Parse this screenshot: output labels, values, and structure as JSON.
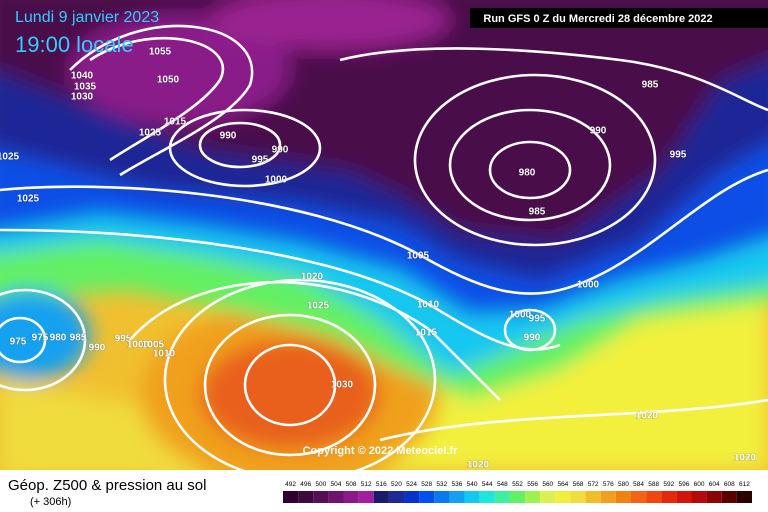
{
  "header": {
    "date": "Lundi 9 janvier 2023",
    "time": "19:00 locale",
    "run": "Run GFS 0 Z du Mercredi 28 décembre 2022"
  },
  "copyright": "Copyright © 2022 Meteociel.fr",
  "footer": {
    "title": "Géop. Z500 & pression au sol",
    "lead": "(+ 306h)"
  },
  "colorbar": {
    "values": [
      492,
      496,
      500,
      504,
      508,
      512,
      516,
      520,
      524,
      528,
      532,
      536,
      540,
      544,
      548,
      552,
      556,
      560,
      564,
      568,
      572,
      576,
      580,
      584,
      588,
      592,
      596,
      600,
      604,
      608,
      612
    ],
    "colors": [
      "#2d002d",
      "#3c0a3c",
      "#550f55",
      "#6e146e",
      "#8a1a8a",
      "#a01ea0",
      "#1a1a6e",
      "#1e2896",
      "#0a32c8",
      "#0050f0",
      "#0a78f0",
      "#14a0f0",
      "#14c8f0",
      "#1ee6dc",
      "#3cf0a0",
      "#64f064",
      "#a0f050",
      "#dcf050",
      "#f0f03c",
      "#f0dc3c",
      "#f0be28",
      "#f0a01e",
      "#f08214",
      "#f06414",
      "#f0460f",
      "#e6280a",
      "#d2140a",
      "#b40a0a",
      "#8c0505",
      "#5a0000",
      "#2d0000"
    ]
  },
  "isobar_labels": [
    1055,
    1050,
    1040,
    1035,
    1030,
    1015,
    1025,
    1025,
    1025,
    990,
    995,
    990,
    1000,
    985,
    990,
    995,
    980,
    985,
    1005,
    1020,
    1025,
    1010,
    1015,
    1000,
    1000,
    995,
    990,
    1020,
    975,
    975,
    980,
    985,
    990,
    995,
    1000,
    1005,
    1010,
    1030,
    1020,
    1020
  ]
}
